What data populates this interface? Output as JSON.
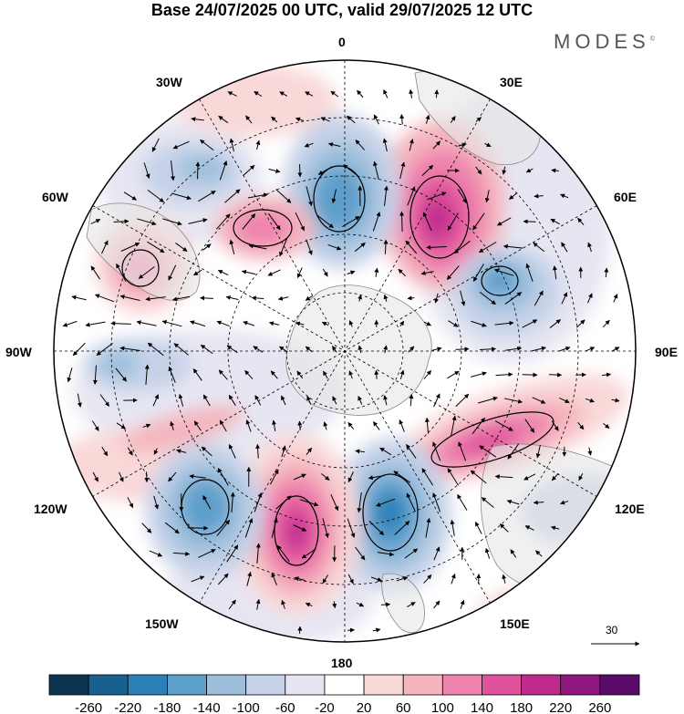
{
  "title": "Base 24/07/2025 00 UTC, valid 29/07/2025 12 UTC",
  "brand": "MODES",
  "brand_mark": "©",
  "longitudes": {
    "top": "0",
    "bottom": "180",
    "left": "90W",
    "right": "90E",
    "n30w": "30W",
    "n30e": "30E",
    "n60w": "60W",
    "n60e": "60E",
    "s120w": "120W",
    "s120e": "120E",
    "s150w": "150W",
    "s150e": "150E"
  },
  "reference_vector": "30",
  "colorbar": {
    "ticks": [
      "-260",
      "-220",
      "-180",
      "-140",
      "-100",
      "-60",
      "-20",
      "20",
      "60",
      "100",
      "140",
      "180",
      "220",
      "260"
    ],
    "colors": [
      "#0d3550",
      "#17608f",
      "#2b80b8",
      "#5d9fcb",
      "#9dbfdc",
      "#c6d2e8",
      "#e6e6f2",
      "#ffffff",
      "#f9d8d8",
      "#f4b5be",
      "#ee84ad",
      "#e0539c",
      "#bf2a8d",
      "#8e167d",
      "#5a0a69"
    ]
  },
  "map_layers": {
    "anomaly_field": "geopotential-height-anomaly",
    "wind_field": "wind-vectors",
    "continents": "antarctica-and-southern-continents",
    "projection": "south-polar-stereographic"
  },
  "anomaly_centers": [
    {
      "name": "high-30E",
      "value": 220
    },
    {
      "name": "low-0",
      "value": -180
    },
    {
      "name": "low-60E",
      "value": -140
    },
    {
      "name": "high-100E",
      "value": 180
    },
    {
      "name": "low-160E",
      "value": -180
    },
    {
      "name": "high-160W",
      "value": 200
    },
    {
      "name": "low-130W",
      "value": -140
    },
    {
      "name": "high-65W",
      "value": 100
    },
    {
      "name": "high-40W",
      "value": 120
    },
    {
      "name": "low-50W",
      "value": -100
    }
  ]
}
